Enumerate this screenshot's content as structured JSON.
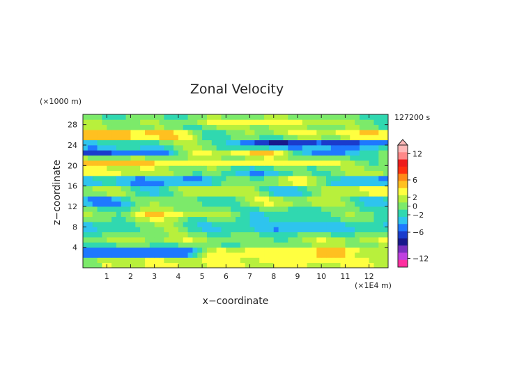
{
  "chart_data": {
    "type": "heatmap",
    "title": "Zonal Velocity",
    "xlabel": "x−coordinate",
    "ylabel": "z−coordinate",
    "x_unit": "(×1E4 m)",
    "y_unit": "(×1000 m)",
    "time_label": "127200 s",
    "xlim": [
      0,
      12.8
    ],
    "ylim": [
      0,
      30
    ],
    "x_ticks": [
      "1",
      "2",
      "3",
      "4",
      "5",
      "6",
      "7",
      "8",
      "9",
      "10",
      "11",
      "12"
    ],
    "y_ticks": [
      "4",
      "8",
      "12",
      "16",
      "20",
      "24",
      "28"
    ],
    "colorbar": {
      "labels": [
        "12",
        "6",
        "2",
        "0",
        "−2",
        "−6",
        "−12"
      ],
      "levels": [
        -14,
        -12,
        -10,
        -8,
        -6,
        -4,
        -2,
        -1,
        0,
        1,
        2,
        4,
        6,
        8,
        10,
        12,
        14
      ],
      "colors": [
        "#ff2fa0",
        "#c040e0",
        "#7a2fc0",
        "#18188c",
        "#1a3ccc",
        "#1e78ff",
        "#2ec4ee",
        "#30d8b0",
        "#7cea6a",
        "#b8f03c",
        "#ffff40",
        "#ffc020",
        "#ff8a18",
        "#ff3010",
        "#ee1c1c",
        "#ff8888",
        "#ffb8b8"
      ]
    },
    "field": {
      "nx": 64,
      "nz": 30,
      "bands": [
        {
          "z": 1.0,
          "a": [
            [
              1.0,
              0.0
            ],
            [
              0.5,
              1.2
            ],
            [
              0.7,
              2.8
            ]
          ],
          "w": 0.9
        },
        {
          "z": 3.0,
          "a": [
            [
              2.0,
              -4.0
            ],
            [
              4.0,
              -4.0
            ],
            [
              6.0,
              3.0
            ],
            [
              9.0,
              4.0
            ],
            [
              10.5,
              6.0
            ],
            [
              12.0,
              2.0
            ]
          ],
          "w": 1.0
        },
        {
          "z": 5.5,
          "a": [
            [
              1.0,
              1.0
            ],
            [
              4.0,
              1.5
            ],
            [
              7.0,
              0.0
            ],
            [
              10.0,
              1.5
            ]
          ],
          "w": 1.0
        },
        {
          "z": 8.0,
          "a": [
            [
              1.0,
              -1.5
            ],
            [
              3.0,
              1.0
            ],
            [
              6.0,
              -1.0
            ],
            [
              9.5,
              -2.0
            ],
            [
              12.0,
              -1.0
            ]
          ],
          "w": 1.2
        },
        {
          "z": 10.5,
          "a": [
            [
              1.5,
              0.5
            ],
            [
              3.0,
              4.0
            ],
            [
              5.5,
              1.0
            ],
            [
              8.0,
              -1.0
            ],
            [
              11.5,
              0.5
            ]
          ],
          "w": 1.0
        },
        {
          "z": 13.0,
          "a": [
            [
              1.0,
              -2.5
            ],
            [
              3.0,
              1.5
            ],
            [
              5.0,
              -1.0
            ],
            [
              7.5,
              2.0
            ],
            [
              10.0,
              1.5
            ],
            [
              12.5,
              -2.0
            ]
          ],
          "w": 1.0
        },
        {
          "z": 15.0,
          "a": [
            [
              1.0,
              2.0
            ],
            [
              3.0,
              -1.0
            ],
            [
              6.0,
              3.0
            ],
            [
              9.0,
              -2.0
            ],
            [
              11.5,
              3.0
            ]
          ],
          "w": 0.9
        },
        {
          "z": 17.0,
          "a": [
            [
              1.5,
              -2.0
            ],
            [
              4.0,
              -3.0
            ],
            [
              6.5,
              0.0
            ],
            [
              9.0,
              2.5
            ],
            [
              12.0,
              -3.0
            ]
          ],
          "w": 0.9
        },
        {
          "z": 18.8,
          "a": [
            [
              1.0,
              3.0
            ],
            [
              4.0,
              1.0
            ],
            [
              7.0,
              -2.0
            ],
            [
              10.0,
              0.5
            ],
            [
              12.0,
              2.0
            ]
          ],
          "w": 0.8
        },
        {
          "z": 20.6,
          "a": [
            [
              1.0,
              5.0
            ],
            [
              3.0,
              3.5
            ],
            [
              6.0,
              3.0
            ],
            [
              9.0,
              3.0
            ],
            [
              12.0,
              0.5
            ]
          ],
          "w": 0.8
        },
        {
          "z": 22.6,
          "a": [
            [
              1.0,
              -4.0
            ],
            [
              3.0,
              -3.0
            ],
            [
              5.5,
              2.0
            ],
            [
              8.0,
              4.0
            ],
            [
              10.5,
              -3.0
            ],
            [
              12.5,
              0.0
            ]
          ],
          "w": 0.8
        },
        {
          "z": 24.4,
          "a": [
            [
              1.0,
              -1.0
            ],
            [
              5.0,
              1.0
            ],
            [
              8.0,
              -6.0
            ],
            [
              11.0,
              -4.0
            ],
            [
              12.7,
              -4.0
            ]
          ],
          "w": 0.9
        },
        {
          "z": 26.0,
          "a": [
            [
              1.0,
              7.0
            ],
            [
              3.0,
              6.0
            ],
            [
              5.5,
              -1.0
            ],
            [
              7.0,
              2.0
            ],
            [
              9.5,
              3.0
            ],
            [
              12.5,
              6.0
            ]
          ],
          "w": 0.8
        },
        {
          "z": 28.4,
          "a": [
            [
              1.0,
              1.0
            ],
            [
              4.0,
              0.5
            ],
            [
              7.0,
              3.0
            ],
            [
              10.0,
              2.0
            ],
            [
              12.0,
              0.5
            ]
          ],
          "w": 1.0
        }
      ]
    }
  }
}
